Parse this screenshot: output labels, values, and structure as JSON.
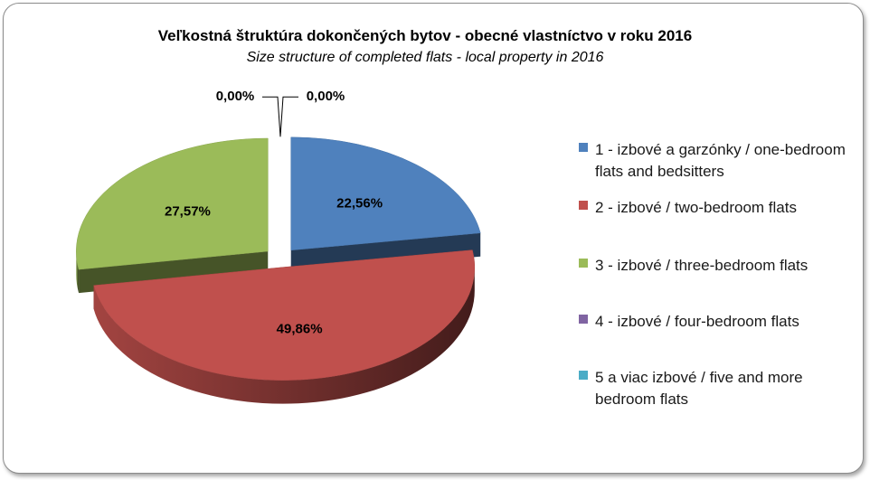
{
  "chart_data": {
    "type": "pie",
    "style": "3d-exploded",
    "title": "Veľkostná štruktúra dokončených bytov  - obecné vlastníctvo v roku 2016",
    "subtitle": "Size structure of completed flats - local property in 2016",
    "legend_position": "right",
    "slices": [
      {
        "label": "1 - izbové a garzónky / one-bedroom flats and bedsitters",
        "value": 22.56,
        "value_label": "22,56%",
        "color": "#4f81bd"
      },
      {
        "label": "2 - izbové / two-bedroom flats",
        "value": 49.86,
        "value_label": "49,86%",
        "color": "#c0504d"
      },
      {
        "label": "3 - izbové / three-bedroom flats",
        "value": 27.57,
        "value_label": "27,57%",
        "color": "#9bbb59"
      },
      {
        "label": "4 - izbové / four-bedroom flats",
        "value": 0.0,
        "value_label": "0,00%",
        "color": "#8064a2"
      },
      {
        "label": "5 a viac izbové / five and more bedroom flats",
        "value": 0.0,
        "value_label": "0,00%",
        "color": "#4bacc6"
      }
    ]
  }
}
